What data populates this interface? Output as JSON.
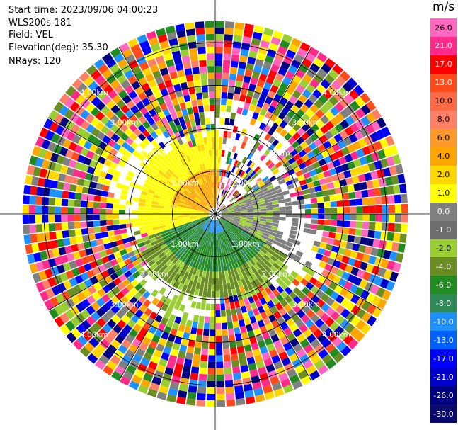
{
  "header": {
    "start_time": "Start time: 2023/09/06 04:00:23",
    "instrument": "WLS200s-181",
    "field": "Field: VEL",
    "elevation": "Elevation(deg): 35.30",
    "nrays": "NRays: 120"
  },
  "colorbar": {
    "unit": "m/s",
    "labels": [
      "26.0",
      "21.0",
      "17.0",
      "13.0",
      "10.0",
      "8.0",
      "6.0",
      "4.0",
      "2.0",
      "1.0",
      "0.0",
      "-1.0",
      "-2.0",
      "-4.0",
      "-6.0",
      "-8.0",
      "-10.0",
      "-13.0",
      "-17.0",
      "-21.0",
      "-26.0",
      "-30.0"
    ],
    "colors": [
      "#ff66c0",
      "#ff2a8a",
      "#ff0000",
      "#ff4a1a",
      "#ff6a44",
      "#ff7f66",
      "#ff9a2a",
      "#ffa500",
      "#ffd700",
      "#ffff00",
      "#808080",
      "#6e6e6e",
      "#9acd32",
      "#6b8e23",
      "#228b22",
      "#2e8b57",
      "#1e90ff",
      "#0060ff",
      "#0000ff",
      "#0000cd",
      "#000080",
      "#0a0a6e"
    ]
  },
  "chart_data": {
    "type": "heatmap",
    "title": "",
    "projection": "polar PPI",
    "nrays": 120,
    "range_rings_km": [
      1.0,
      2.0,
      3.0,
      4.0
    ],
    "range_ring_labels": [
      "1.00km",
      "2.00km",
      "3.00km",
      "4.00km"
    ],
    "max_range_km": 4.5,
    "vmin": -30.0,
    "vmax": 26.0,
    "regions": [
      {
        "sector": "north-west",
        "range_km": [
          0.3,
          1.8
        ],
        "velocity_ms": 2.0,
        "color": "yellow"
      },
      {
        "sector": "north-west",
        "range_km": [
          0.3,
          1.1
        ],
        "velocity_ms": 4.0,
        "color": "orange"
      },
      {
        "sector": "south",
        "range_km": [
          0.2,
          1.8
        ],
        "velocity_ms": -4.0,
        "color": "green"
      },
      {
        "sector": "south near center",
        "range_km": [
          0.0,
          0.4
        ],
        "velocity_ms": -8.0,
        "color": "blue"
      },
      {
        "sector": "east",
        "range_km": [
          0.2,
          1.4
        ],
        "velocity_ms": 0.0,
        "color": "gray"
      },
      {
        "sector": "all",
        "range_km": [
          2.0,
          4.5
        ],
        "velocity_ms": "noise",
        "color": "mixed"
      }
    ]
  }
}
